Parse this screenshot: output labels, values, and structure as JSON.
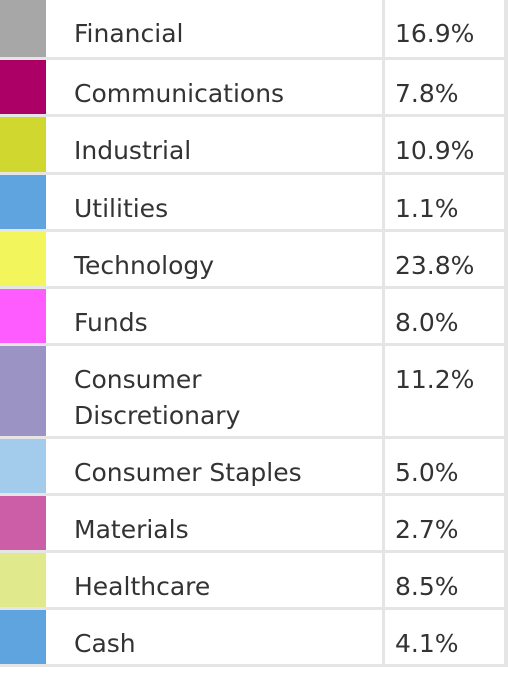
{
  "legend": {
    "rows": [
      {
        "name": "Financial",
        "value": "16.9%",
        "color": "#a7a7a7"
      },
      {
        "name": "Communications",
        "value": "7.8%",
        "color": "#ad0067"
      },
      {
        "name": "Industrial",
        "value": "10.9%",
        "color": "#d0d82f"
      },
      {
        "name": "Utilities",
        "value": "1.1%",
        "color": "#5fa4de"
      },
      {
        "name": "Technology",
        "value": "23.8%",
        "color": "#f2f55c"
      },
      {
        "name": "Funds",
        "value": "8.0%",
        "color": "#ff5cff"
      },
      {
        "name": "Consumer\nDiscretionary",
        "value": "11.2%",
        "color": "#9b93c4"
      },
      {
        "name": "Consumer Staples",
        "value": "5.0%",
        "color": "#a3cbeb"
      },
      {
        "name": "Materials",
        "value": "2.7%",
        "color": "#cc5ea8"
      },
      {
        "name": "Healthcare",
        "value": "8.5%",
        "color": "#e0ea8d"
      },
      {
        "name": "Cash",
        "value": "4.1%",
        "color": "#5fa4de"
      }
    ]
  }
}
